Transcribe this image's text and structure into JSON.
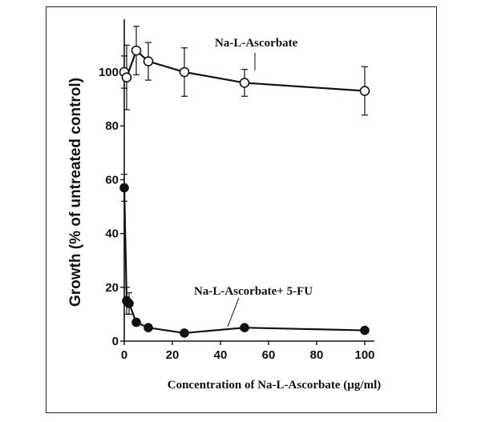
{
  "chart_data": {
    "type": "line",
    "xlabel": "Concentration of Na-L-Ascorbate (µg/ml)",
    "ylabel": "Growth (% of untreated control)",
    "xlim": [
      0,
      100
    ],
    "ylim": [
      0,
      120
    ],
    "xticks": [
      "0",
      "20",
      "40",
      "60",
      "80",
      "100"
    ],
    "yticks": [
      "0",
      "20",
      "40",
      "60",
      "80",
      "100"
    ],
    "grid": false,
    "series": [
      {
        "name": "Na-L-Ascorbate",
        "marker": "open-circle",
        "x": [
          0,
          1,
          5,
          10,
          25,
          50,
          100
        ],
        "y": [
          100,
          98,
          108,
          104,
          100,
          96,
          93
        ],
        "err": [
          6,
          12,
          9,
          7,
          9,
          5,
          9
        ]
      },
      {
        "name": "Na-L-Ascorbate+ 5-FU",
        "marker": "filled-circle",
        "x": [
          0,
          1,
          2,
          5,
          10,
          25,
          50,
          100
        ],
        "y": [
          57,
          15,
          14,
          7,
          5,
          3,
          5,
          4
        ],
        "err": [
          5,
          5,
          4,
          1,
          1,
          1,
          1,
          1
        ]
      }
    ],
    "annotations": [
      "Na-L-Ascorbate",
      "Na-L-Ascorbate+ 5-FU"
    ]
  }
}
